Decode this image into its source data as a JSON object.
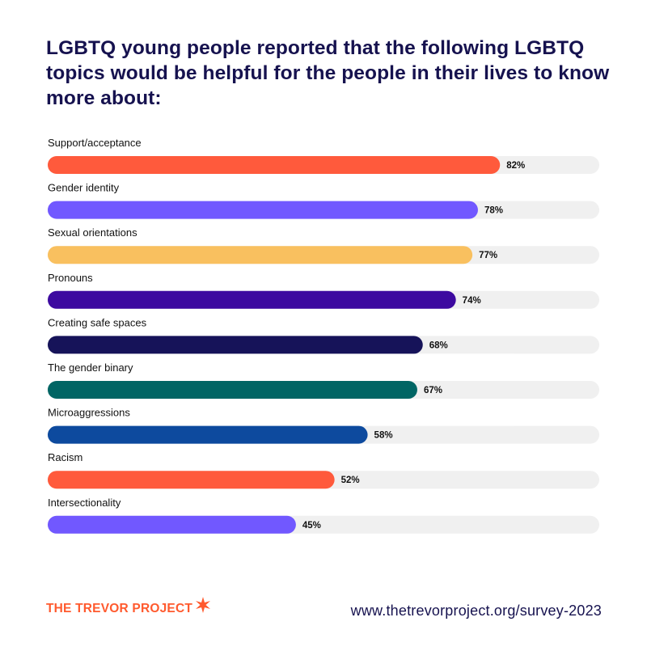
{
  "title": "LGBTQ young people reported that the following LGBTQ topics would be helpful for the people in their lives to know more about:",
  "chart_data": {
    "type": "bar",
    "orientation": "horizontal",
    "categories": [
      "Support/acceptance",
      "Gender identity",
      "Sexual orientations",
      "Pronouns",
      "Creating safe spaces",
      "The gender binary",
      "Microaggressions",
      "Racism",
      "Intersectionality"
    ],
    "values": [
      82,
      78,
      77,
      74,
      68,
      67,
      58,
      52,
      45
    ],
    "value_labels": [
      "82%",
      "78%",
      "77%",
      "74%",
      "68%",
      "67%",
      "58%",
      "52%",
      "45%"
    ],
    "colors": [
      "#ff5a3c",
      "#7158ff",
      "#f9c05f",
      "#3d0aa0",
      "#161359",
      "#006564",
      "#0d4a9e",
      "#ff5a3c",
      "#7158ff"
    ],
    "track_color": "#f0f0f0",
    "xlim": [
      0,
      100
    ],
    "grid": false,
    "legend": "none"
  },
  "footer": {
    "logo_text": "THE TREVOR PROJECT",
    "url": "www.thetrevorproject.org/survey-2023"
  },
  "icons": {
    "logo_mark": "star-burst-icon"
  }
}
